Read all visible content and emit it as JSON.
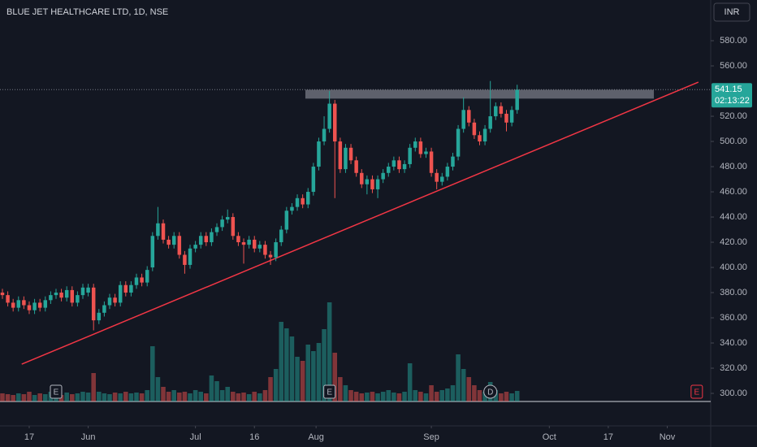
{
  "chart_data": {
    "type": "candlestick",
    "title": "BLUE JET HEALTHCARE LTD, 1D, NSE",
    "currency": "INR",
    "countdown": "02:13:22",
    "colors": {
      "up": "#26a69a",
      "down": "#ef5350"
    },
    "open": [
      380,
      378,
      372,
      368,
      374,
      370,
      366,
      372,
      368,
      374,
      378,
      380,
      376,
      382,
      372,
      378,
      380,
      384,
      358,
      364,
      370,
      376,
      372,
      386,
      380,
      386,
      392,
      388,
      400,
      425,
      435,
      422,
      418,
      425,
      410,
      402,
      415,
      418,
      425,
      420,
      428,
      432,
      438,
      440,
      425,
      420,
      418,
      422,
      415,
      418,
      410,
      408,
      420,
      430,
      445,
      448,
      455,
      450,
      460,
      480,
      500,
      510,
      530,
      500,
      478,
      495,
      485,
      475,
      466,
      470,
      462,
      470,
      475,
      480,
      485,
      478,
      482,
      495,
      500,
      490,
      492,
      475,
      468,
      472,
      480,
      488,
      510,
      525,
      515,
      505,
      500,
      510,
      520,
      528,
      522,
      515,
      525
    ],
    "high": [
      383,
      381,
      375,
      377,
      377,
      373,
      375,
      375,
      377,
      381,
      383,
      383,
      385,
      385,
      381,
      387,
      387,
      387,
      367,
      373,
      379,
      379,
      389,
      389,
      389,
      395,
      395,
      401,
      428,
      448,
      438,
      425,
      428,
      428,
      413,
      418,
      421,
      428,
      428,
      431,
      435,
      441,
      446,
      443,
      428,
      423,
      425,
      425,
      421,
      421,
      413,
      423,
      433,
      448,
      451,
      458,
      458,
      463,
      483,
      503,
      520,
      540,
      533,
      503,
      498,
      498,
      488,
      478,
      473,
      473,
      473,
      478,
      483,
      488,
      488,
      485,
      498,
      503,
      503,
      495,
      495,
      478,
      475,
      483,
      491,
      513,
      535,
      528,
      518,
      508,
      513,
      548,
      531,
      531,
      525,
      528,
      545
    ],
    "low": [
      375,
      369,
      365,
      365,
      367,
      363,
      363,
      365,
      365,
      371,
      375,
      373,
      373,
      369,
      369,
      375,
      377,
      350,
      355,
      361,
      367,
      369,
      369,
      377,
      377,
      383,
      385,
      385,
      397,
      422,
      419,
      415,
      415,
      407,
      395,
      399,
      412,
      415,
      417,
      417,
      425,
      429,
      435,
      422,
      417,
      403,
      415,
      412,
      412,
      407,
      402,
      405,
      417,
      427,
      442,
      445,
      447,
      447,
      457,
      477,
      497,
      507,
      455,
      475,
      475,
      482,
      472,
      463,
      458,
      459,
      455,
      467,
      472,
      477,
      475,
      475,
      479,
      492,
      487,
      487,
      472,
      462,
      465,
      469,
      477,
      485,
      507,
      512,
      502,
      497,
      497,
      507,
      517,
      519,
      508,
      512,
      522
    ],
    "close": [
      378,
      372,
      368,
      374,
      370,
      366,
      372,
      368,
      374,
      378,
      380,
      376,
      382,
      372,
      378,
      384,
      384,
      358,
      364,
      370,
      376,
      372,
      386,
      380,
      386,
      392,
      388,
      398,
      425,
      435,
      422,
      418,
      425,
      410,
      402,
      415,
      418,
      425,
      420,
      428,
      432,
      438,
      440,
      425,
      420,
      418,
      422,
      415,
      418,
      410,
      408,
      420,
      430,
      445,
      448,
      455,
      450,
      460,
      480,
      500,
      510,
      530,
      500,
      478,
      495,
      485,
      475,
      466,
      470,
      462,
      470,
      475,
      480,
      485,
      478,
      482,
      495,
      500,
      490,
      492,
      475,
      468,
      472,
      480,
      488,
      510,
      525,
      515,
      505,
      500,
      510,
      520,
      528,
      522,
      515,
      525,
      541.15
    ],
    "volume": [
      10,
      9,
      8,
      10,
      9,
      12,
      8,
      10,
      9,
      12,
      10,
      8,
      11,
      9,
      10,
      12,
      11,
      35,
      12,
      10,
      9,
      11,
      10,
      12,
      10,
      11,
      10,
      14,
      68,
      30,
      18,
      12,
      14,
      11,
      12,
      10,
      14,
      12,
      10,
      32,
      25,
      14,
      18,
      12,
      10,
      11,
      9,
      12,
      10,
      14,
      30,
      40,
      98,
      90,
      80,
      55,
      50,
      70,
      62,
      72,
      89,
      122,
      60,
      30,
      20,
      14,
      12,
      10,
      11,
      12,
      10,
      12,
      14,
      11,
      10,
      12,
      47,
      14,
      12,
      10,
      20,
      12,
      14,
      16,
      20,
      58,
      40,
      30,
      20,
      14,
      12,
      24,
      14,
      10,
      12,
      10,
      13
    ],
    "xlim": [
      -0.45,
      132.1
    ],
    "xticks": [
      {
        "value": 5,
        "label": "17"
      },
      {
        "value": 16,
        "label": "Jun"
      },
      {
        "value": 36,
        "label": "Jul"
      },
      {
        "value": 47,
        "label": "16"
      },
      {
        "value": 58.5,
        "label": "Aug"
      },
      {
        "value": 80,
        "label": "Sep"
      },
      {
        "value": 102,
        "label": "Oct"
      },
      {
        "value": 113,
        "label": "17"
      },
      {
        "value": 124,
        "label": "Nov"
      }
    ],
    "ylim": [
      274.2,
      612.3
    ],
    "yticks": [
      {
        "value": 300,
        "label": "300.00"
      },
      {
        "value": 320,
        "label": "320.00"
      },
      {
        "value": 340,
        "label": "340.00"
      },
      {
        "value": 360,
        "label": "360.00"
      },
      {
        "value": 380,
        "label": "380.00"
      },
      {
        "value": 400,
        "label": "400.00"
      },
      {
        "value": 420,
        "label": "420.00"
      },
      {
        "value": 440,
        "label": "440.00"
      },
      {
        "value": 460,
        "label": "460.00"
      },
      {
        "value": 480,
        "label": "480.00"
      },
      {
        "value": 500,
        "label": "500.00"
      },
      {
        "value": 520,
        "label": "520.00"
      },
      {
        "value": 560,
        "label": "560.00"
      },
      {
        "value": 580,
        "label": "580.00"
      }
    ],
    "y2lim": [
      0,
      130
    ],
    "trendline": {
      "color": "#f23645",
      "x": [
        3.6,
        129.8
      ],
      "y": [
        323.2,
        547.1
      ]
    },
    "zone": {
      "color": "#787b86",
      "x": [
        56.5,
        121.5
      ],
      "y": [
        534,
        541
      ]
    },
    "events": [
      {
        "x": 10,
        "label": "E",
        "color": "#b2b5be"
      },
      {
        "x": 61,
        "label": "E",
        "color": "#b2b5be"
      },
      {
        "x": 91,
        "label": "D",
        "color": "#b2b5be"
      },
      {
        "x": 129.5,
        "label": "E",
        "color": "#f23645"
      }
    ]
  }
}
